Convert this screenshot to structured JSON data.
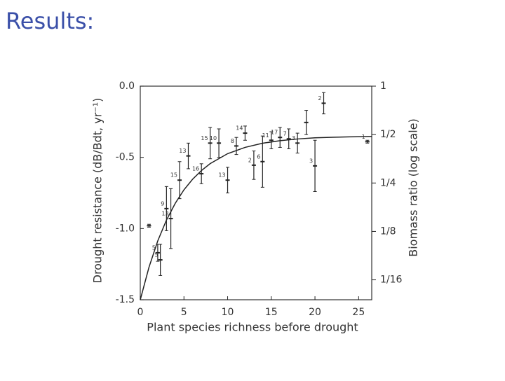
{
  "slide_title": "Results:",
  "chart_data": {
    "type": "scatter",
    "x_label": "Plant species richness before drought",
    "y_label": "Drought resistance (dB/Bdt, yr⁻¹)",
    "y2_label": "Biomass ratio (log scale)",
    "xlim": [
      0,
      26.5
    ],
    "xticks": [
      0,
      5,
      10,
      15,
      20,
      25
    ],
    "ylim": [
      -1.5,
      0
    ],
    "yticks": [
      {
        "value": 0,
        "label": "0.0"
      },
      -0.5,
      {
        "value": -1,
        "label": "-1.0"
      },
      -1.5
    ],
    "y2scale": "log",
    "y2lim": [
      0.047,
      1
    ],
    "y2ticks": [
      1,
      {
        "value": 0.5,
        "label": "1/2"
      },
      {
        "value": 0.25,
        "label": "1/4"
      },
      {
        "value": 0.125,
        "label": "1/8"
      },
      {
        "value": 0.0625,
        "label": "1/16"
      }
    ],
    "color": "#222222",
    "points": {
      "x": [
        1,
        2,
        2.3,
        3,
        3.5,
        4.5,
        5.5,
        7,
        8,
        9,
        10,
        11,
        12,
        13,
        14,
        15,
        16,
        17,
        18,
        19,
        20,
        21,
        26
      ],
      "values": [
        -0.98,
        -1.17,
        -1.22,
        -0.86,
        -0.93,
        -0.66,
        -0.49,
        -0.615,
        -0.4,
        -0.4,
        -0.66,
        -0.42,
        -0.33,
        -0.555,
        -0.53,
        -0.38,
        -0.36,
        -0.37,
        -0.4,
        -0.255,
        -0.56,
        -0.12,
        -0.39
      ],
      "errors": [
        0.01,
        0.06,
        0.11,
        0.155,
        0.21,
        0.13,
        0.09,
        0.07,
        0.11,
        0.1,
        0.09,
        0.06,
        0.05,
        0.1,
        0.18,
        0.06,
        0.07,
        0.07,
        0.07,
        0.085,
        0.18,
        0.075,
        0.01
      ],
      "labels": [
        null,
        "5",
        "5",
        "9",
        "13",
        "15",
        "13",
        "16",
        "15",
        "10",
        "13",
        "8",
        "14",
        "2",
        "6",
        "11",
        "17",
        "7",
        "3",
        null,
        "3",
        "2",
        "1"
      ]
    },
    "curve": {
      "x": [
        0,
        1,
        2,
        3,
        4,
        5,
        6,
        7,
        8,
        10,
        12,
        14,
        16,
        18,
        20,
        22,
        24,
        26.5
      ],
      "values": [
        -1.5,
        -1.271,
        -1.087,
        -0.94,
        -0.823,
        -0.728,
        -0.653,
        -0.593,
        -0.544,
        -0.474,
        -0.43,
        -0.401,
        -0.383,
        -0.371,
        -0.363,
        -0.359,
        -0.356,
        -0.353
      ]
    }
  }
}
